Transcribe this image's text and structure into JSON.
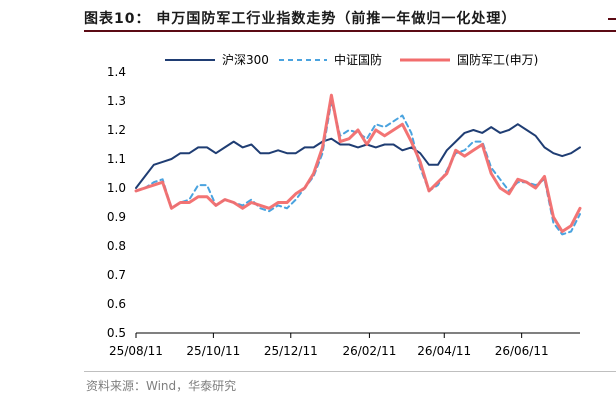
{
  "figure": {
    "title": "图表10： 申万国防军工行业指数走势（前推一年做归一化处理）",
    "source": "资料来源：Wind，华泰研究"
  },
  "chart_data": {
    "type": "line",
    "title": "",
    "xlabel": "",
    "ylabel": "",
    "x_ticks": [
      "25/08/11",
      "25/10/11",
      "25/12/11",
      "26/02/11",
      "26/04/11",
      "26/06/11"
    ],
    "ylim": [
      0.5,
      1.4
    ],
    "y_ticks": [
      "0.5",
      "0.6",
      "0.7",
      "0.8",
      "0.9",
      "1.0",
      "1.1",
      "1.2",
      "1.3",
      "1.4"
    ],
    "grid": false,
    "legend_position": "top",
    "series": [
      {
        "name": "沪深300",
        "color": "#1f3d73",
        "style": "solid",
        "points": [
          [
            "2025-08-11",
            1.0
          ],
          [
            "2025-08-18",
            1.04
          ],
          [
            "2025-08-25",
            1.08
          ],
          [
            "2025-09-01",
            1.09
          ],
          [
            "2025-09-08",
            1.1
          ],
          [
            "2025-09-15",
            1.12
          ],
          [
            "2025-09-22",
            1.12
          ],
          [
            "2025-09-29",
            1.14
          ],
          [
            "2025-10-06",
            1.14
          ],
          [
            "2025-10-13",
            1.12
          ],
          [
            "2025-10-20",
            1.14
          ],
          [
            "2025-10-27",
            1.16
          ],
          [
            "2025-11-03",
            1.14
          ],
          [
            "2025-11-10",
            1.15
          ],
          [
            "2025-11-17",
            1.12
          ],
          [
            "2025-11-24",
            1.12
          ],
          [
            "2025-12-01",
            1.13
          ],
          [
            "2025-12-08",
            1.12
          ],
          [
            "2025-12-15",
            1.12
          ],
          [
            "2025-12-22",
            1.14
          ],
          [
            "2025-12-29",
            1.14
          ],
          [
            "2026-01-05",
            1.16
          ],
          [
            "2026-01-12",
            1.17
          ],
          [
            "2026-01-19",
            1.15
          ],
          [
            "2026-01-26",
            1.15
          ],
          [
            "2026-02-02",
            1.14
          ],
          [
            "2026-02-09",
            1.15
          ],
          [
            "2026-02-16",
            1.14
          ],
          [
            "2026-02-23",
            1.15
          ],
          [
            "2026-03-02",
            1.15
          ],
          [
            "2026-03-09",
            1.13
          ],
          [
            "2026-03-16",
            1.14
          ],
          [
            "2026-03-23",
            1.12
          ],
          [
            "2026-03-30",
            1.08
          ],
          [
            "2026-04-06",
            1.08
          ],
          [
            "2026-04-13",
            1.13
          ],
          [
            "2026-04-20",
            1.16
          ],
          [
            "2026-04-27",
            1.19
          ],
          [
            "2026-05-04",
            1.2
          ],
          [
            "2026-05-11",
            1.19
          ],
          [
            "2026-05-18",
            1.21
          ],
          [
            "2026-05-25",
            1.19
          ],
          [
            "2026-06-01",
            1.2
          ],
          [
            "2026-06-08",
            1.22
          ],
          [
            "2026-06-15",
            1.2
          ],
          [
            "2026-06-22",
            1.18
          ],
          [
            "2026-06-29",
            1.14
          ],
          [
            "2026-07-06",
            1.12
          ],
          [
            "2026-07-13",
            1.11
          ],
          [
            "2026-07-20",
            1.12
          ],
          [
            "2026-07-27",
            1.14
          ]
        ]
      },
      {
        "name": "中证国防",
        "color": "#4aa3df",
        "style": "dashed",
        "points": [
          [
            "2025-08-11",
            0.99
          ],
          [
            "2025-08-18",
            1.0
          ],
          [
            "2025-08-25",
            1.02
          ],
          [
            "2025-09-01",
            1.03
          ],
          [
            "2025-09-08",
            0.93
          ],
          [
            "2025-09-15",
            0.95
          ],
          [
            "2025-09-22",
            0.96
          ],
          [
            "2025-09-29",
            1.01
          ],
          [
            "2025-10-06",
            1.01
          ],
          [
            "2025-10-13",
            0.94
          ],
          [
            "2025-10-20",
            0.96
          ],
          [
            "2025-10-27",
            0.95
          ],
          [
            "2025-11-03",
            0.94
          ],
          [
            "2025-11-10",
            0.96
          ],
          [
            "2025-11-17",
            0.93
          ],
          [
            "2025-11-24",
            0.92
          ],
          [
            "2025-12-01",
            0.94
          ],
          [
            "2025-12-08",
            0.93
          ],
          [
            "2025-12-15",
            0.96
          ],
          [
            "2025-12-22",
            1.0
          ],
          [
            "2025-12-29",
            1.04
          ],
          [
            "2026-01-05",
            1.12
          ],
          [
            "2026-01-12",
            1.3
          ],
          [
            "2026-01-19",
            1.18
          ],
          [
            "2026-01-26",
            1.2
          ],
          [
            "2026-02-02",
            1.19
          ],
          [
            "2026-02-09",
            1.17
          ],
          [
            "2026-02-16",
            1.22
          ],
          [
            "2026-02-23",
            1.21
          ],
          [
            "2026-03-02",
            1.23
          ],
          [
            "2026-03-09",
            1.25
          ],
          [
            "2026-03-16",
            1.19
          ],
          [
            "2026-03-23",
            1.07
          ],
          [
            "2026-03-30",
            0.99
          ],
          [
            "2026-04-06",
            1.01
          ],
          [
            "2026-04-13",
            1.06
          ],
          [
            "2026-04-20",
            1.12
          ],
          [
            "2026-04-27",
            1.13
          ],
          [
            "2026-05-04",
            1.16
          ],
          [
            "2026-05-11",
            1.16
          ],
          [
            "2026-05-18",
            1.07
          ],
          [
            "2026-05-25",
            1.03
          ],
          [
            "2026-06-01",
            0.99
          ],
          [
            "2026-06-08",
            1.02
          ],
          [
            "2026-06-15",
            1.02
          ],
          [
            "2026-06-22",
            1.01
          ],
          [
            "2026-06-29",
            1.03
          ],
          [
            "2026-07-06",
            0.88
          ],
          [
            "2026-07-13",
            0.84
          ],
          [
            "2026-07-20",
            0.85
          ],
          [
            "2026-07-27",
            0.91
          ]
        ]
      },
      {
        "name": "国防军工(申万)",
        "color": "#f26d6d",
        "style": "solid",
        "points": [
          [
            "2025-08-11",
            0.99
          ],
          [
            "2025-08-18",
            1.0
          ],
          [
            "2025-08-25",
            1.01
          ],
          [
            "2025-09-01",
            1.02
          ],
          [
            "2025-09-08",
            0.93
          ],
          [
            "2025-09-15",
            0.95
          ],
          [
            "2025-09-22",
            0.95
          ],
          [
            "2025-09-29",
            0.97
          ],
          [
            "2025-10-06",
            0.97
          ],
          [
            "2025-10-13",
            0.94
          ],
          [
            "2025-10-20",
            0.96
          ],
          [
            "2025-10-27",
            0.95
          ],
          [
            "2025-11-03",
            0.93
          ],
          [
            "2025-11-10",
            0.95
          ],
          [
            "2025-11-17",
            0.94
          ],
          [
            "2025-11-24",
            0.93
          ],
          [
            "2025-12-01",
            0.95
          ],
          [
            "2025-12-08",
            0.95
          ],
          [
            "2025-12-15",
            0.98
          ],
          [
            "2025-12-22",
            1.0
          ],
          [
            "2025-12-29",
            1.05
          ],
          [
            "2026-01-05",
            1.14
          ],
          [
            "2026-01-12",
            1.32
          ],
          [
            "2026-01-19",
            1.16
          ],
          [
            "2026-01-26",
            1.17
          ],
          [
            "2026-02-02",
            1.2
          ],
          [
            "2026-02-09",
            1.15
          ],
          [
            "2026-02-16",
            1.2
          ],
          [
            "2026-02-23",
            1.18
          ],
          [
            "2026-03-02",
            1.2
          ],
          [
            "2026-03-09",
            1.22
          ],
          [
            "2026-03-16",
            1.16
          ],
          [
            "2026-03-23",
            1.09
          ],
          [
            "2026-03-30",
            0.99
          ],
          [
            "2026-04-06",
            1.02
          ],
          [
            "2026-04-13",
            1.05
          ],
          [
            "2026-04-20",
            1.13
          ],
          [
            "2026-04-27",
            1.11
          ],
          [
            "2026-05-04",
            1.13
          ],
          [
            "2026-05-11",
            1.15
          ],
          [
            "2026-05-18",
            1.05
          ],
          [
            "2026-05-25",
            1.0
          ],
          [
            "2026-06-01",
            0.98
          ],
          [
            "2026-06-08",
            1.03
          ],
          [
            "2026-06-15",
            1.02
          ],
          [
            "2026-06-22",
            1.0
          ],
          [
            "2026-06-29",
            1.04
          ],
          [
            "2026-07-06",
            0.9
          ],
          [
            "2026-07-13",
            0.85
          ],
          [
            "2026-07-20",
            0.87
          ],
          [
            "2026-07-27",
            0.93
          ]
        ]
      }
    ]
  }
}
